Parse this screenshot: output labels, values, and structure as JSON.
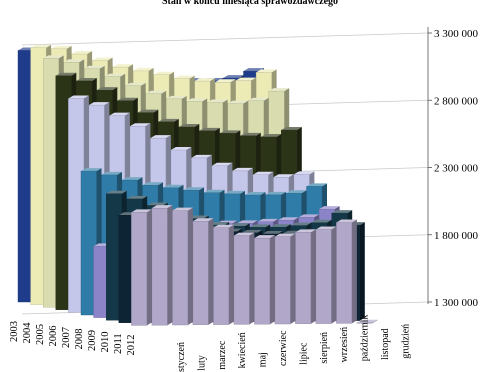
{
  "chart_data": {
    "type": "bar",
    "variant": "3d-column",
    "title": "Stan w końcu miesiąca sprawozdawczego",
    "categories": [
      "styczeń",
      "luty",
      "marzec",
      "kwiecień",
      "maj",
      "czerwiec",
      "lipiec",
      "sierpień",
      "wrzesień",
      "październik",
      "listopad",
      "grudzień"
    ],
    "y_ticks": [
      "1 300 000",
      "1 800 000",
      "2 300 000",
      "2 800 000",
      "3 300 000"
    ],
    "ylim": [
      1300000,
      3300000
    ],
    "grid": true,
    "series": [
      {
        "name": "2003",
        "color": "#1e3c8a",
        "values": [
          3170000,
          3140000,
          3100000,
          3060000,
          3020000,
          2980000,
          2940000,
          2920000,
          2930000,
          2930000,
          2950000,
          3000000
        ]
      },
      {
        "name": "2004",
        "color": "#ecebb6",
        "values": [
          3210000,
          3200000,
          3160000,
          3110000,
          3060000,
          3030000,
          3000000,
          2970000,
          2950000,
          2940000,
          2950000,
          3010000
        ]
      },
      {
        "name": "2005",
        "color": "#d9dcae",
        "values": [
          3150000,
          3120000,
          3070000,
          3010000,
          2940000,
          2880000,
          2840000,
          2820000,
          2810000,
          2800000,
          2820000,
          2890000
        ]
      },
      {
        "name": "2006",
        "color": "#2c3418",
        "values": [
          3040000,
          3000000,
          2930000,
          2850000,
          2760000,
          2690000,
          2650000,
          2620000,
          2600000,
          2580000,
          2570000,
          2620000
        ]
      },
      {
        "name": "2007",
        "color": "#c4c6ea",
        "values": [
          2890000,
          2840000,
          2760000,
          2680000,
          2590000,
          2500000,
          2440000,
          2380000,
          2340000,
          2310000,
          2290000,
          2310000
        ]
      },
      {
        "name": "2008",
        "color": "#2f7ca8",
        "values": [
          2370000,
          2340000,
          2300000,
          2260000,
          2240000,
          2220000,
          2200000,
          2190000,
          2180000,
          2180000,
          2190000,
          2240000
        ]
      },
      {
        "name": "2009",
        "color": "#8c84c8",
        "values": [
          1830000,
          1870000,
          1910000,
          1950000,
          1970000,
          1980000,
          1990000,
          1990000,
          2000000,
          2010000,
          2030000,
          2090000
        ]
      },
      {
        "name": "2010",
        "color": "#143848",
        "values": [
          2240000,
          2200000,
          2150000,
          2100000,
          2050000,
          2000000,
          1990000,
          1980000,
          1980000,
          1990000,
          2010000,
          2080000
        ]
      },
      {
        "name": "2011",
        "color": "#0c2434",
        "values": [
          2100000,
          2090000,
          2060000,
          2020000,
          1990000,
          1970000,
          1960000,
          1950000,
          1950000,
          1960000,
          1970000,
          2010000
        ]
      },
      {
        "name": "2012",
        "color": "#b1a8c9",
        "values": [
          2140000,
          2170000,
          2150000,
          2070000,
          2020000,
          1960000,
          1940000,
          1950000,
          1980000,
          2000000,
          2050000,
          1300000
        ]
      }
    ]
  }
}
